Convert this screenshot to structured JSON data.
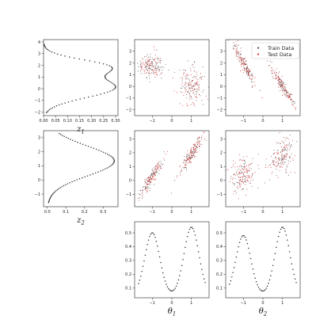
{
  "colors": {
    "train": "#5a4a4a",
    "test": "#d62728",
    "curve": "#333333",
    "frame": "#222222",
    "legend_border": "#cccccc"
  },
  "legend": {
    "placement": "upper-right of top-right panel",
    "train_label": "Train Data",
    "test_label": "Test Data"
  },
  "chart_data": [
    {
      "id": "z1-density",
      "type": "line",
      "xlabel_main": "z",
      "xlabel_sub": "1",
      "xlim": [
        0.0,
        0.31
      ],
      "ylim": [
        -2.3,
        4.2
      ],
      "xticks": [
        0.0,
        0.05,
        0.1,
        0.15,
        0.2,
        0.25,
        0.3
      ],
      "xticklabels": [
        "0.00",
        "0.05",
        "0.10",
        "0.15",
        "0.20",
        "0.25",
        "0.30"
      ],
      "yticks": [
        -2,
        -1,
        0,
        1,
        2,
        3,
        4
      ],
      "yticklabels": [
        "−2",
        "−1",
        "0",
        "1",
        "2",
        "3",
        "4"
      ],
      "curve": {
        "orientation": "horizontal-density",
        "mixture": [
          {
            "w": 0.62,
            "mu": 0.1,
            "sigma": 0.85
          },
          {
            "w": 0.38,
            "mu": 1.9,
            "sigma": 0.62
          }
        ],
        "y_range": [
          -2.05,
          3.8
        ],
        "peak_x": 0.3
      }
    },
    {
      "id": "z2-density",
      "type": "line",
      "xlabel_main": "z",
      "xlabel_sub": "2",
      "xlim": [
        -0.02,
        0.38
      ],
      "ylim": [
        -1.9,
        3.5
      ],
      "xticks": [
        0.0,
        0.1,
        0.2,
        0.3
      ],
      "xticklabels": [
        "0.0",
        "0.1",
        "0.2",
        "0.3"
      ],
      "yticks": [
        -1,
        0,
        1,
        2,
        3
      ],
      "yticklabels": [
        "−1",
        "0",
        "1",
        "2",
        "3"
      ],
      "curve": {
        "orientation": "horizontal-density",
        "mixture": [
          {
            "w": 1.0,
            "mu": 1.35,
            "sigma": 1.05
          }
        ],
        "y_range": [
          -1.6,
          3.3
        ],
        "peak_x": 0.36
      }
    },
    {
      "id": "theta1-vs-z1",
      "type": "scatter",
      "xlim": [
        -1.9,
        1.9
      ],
      "ylim": [
        -2.5,
        4.0
      ],
      "xticks": [
        -1,
        0,
        1
      ],
      "xticklabels": [
        "−1",
        "0",
        "1"
      ],
      "yticks": [
        -2,
        -1,
        0,
        1,
        2,
        3
      ],
      "yticklabels": [
        "−2",
        "−1",
        "0",
        "1",
        "2",
        "3"
      ],
      "clusters": [
        {
          "cx": -1.05,
          "cy": 1.8,
          "sx": 0.32,
          "sy": 0.55,
          "rho": 0.0,
          "n": 170
        },
        {
          "cx": 1.05,
          "cy": 0.1,
          "sx": 0.32,
          "sy": 0.75,
          "rho": 0.0,
          "n": 170
        }
      ]
    },
    {
      "id": "theta2-vs-z1",
      "type": "scatter",
      "xlim": [
        -1.9,
        1.9
      ],
      "ylim": [
        -2.5,
        4.0
      ],
      "xticks": [
        -1,
        0,
        1
      ],
      "xticklabels": [
        "−1",
        "0",
        "1"
      ],
      "yticks": [
        -2,
        -1,
        0,
        1,
        2,
        3
      ],
      "yticklabels": [
        "−2",
        "−1",
        "0",
        "1",
        "2",
        "3"
      ],
      "clusters": [
        {
          "cx": -1.0,
          "cy": 2.0,
          "sx": 0.3,
          "sy": 0.95,
          "rho": -0.95,
          "n": 170
        },
        {
          "cx": 1.0,
          "cy": 0.0,
          "sx": 0.3,
          "sy": 0.85,
          "rho": -0.95,
          "n": 170
        }
      ]
    },
    {
      "id": "theta1-vs-z2",
      "type": "scatter",
      "xlim": [
        -1.9,
        1.9
      ],
      "ylim": [
        -1.9,
        3.6
      ],
      "xticks": [
        -1,
        0,
        1
      ],
      "xticklabels": [
        "−1",
        "0",
        "1"
      ],
      "yticks": [
        -1,
        0,
        1,
        2,
        3
      ],
      "yticklabels": [
        "−1",
        "0",
        "1",
        "2",
        "3"
      ],
      "clusters": [
        {
          "cx": -1.0,
          "cy": 0.3,
          "sx": 0.32,
          "sy": 0.75,
          "rho": 0.93,
          "n": 170
        },
        {
          "cx": 1.0,
          "cy": 1.9,
          "sx": 0.32,
          "sy": 0.75,
          "rho": 0.93,
          "n": 170
        }
      ]
    },
    {
      "id": "theta2-vs-z2",
      "type": "scatter",
      "xlim": [
        -1.9,
        1.9
      ],
      "ylim": [
        -1.9,
        3.6
      ],
      "xticks": [
        -1,
        0,
        1
      ],
      "xticklabels": [
        "−1",
        "0",
        "1"
      ],
      "yticks": [
        -1,
        0,
        1,
        2,
        3
      ],
      "yticklabels": [
        "−1",
        "0",
        "1",
        "2",
        "3"
      ],
      "clusters": [
        {
          "cx": -1.0,
          "cy": 0.4,
          "sx": 0.3,
          "sy": 0.7,
          "rho": 0.3,
          "n": 170
        },
        {
          "cx": 1.0,
          "cy": 1.8,
          "sx": 0.3,
          "sy": 0.75,
          "rho": 0.3,
          "n": 170
        }
      ]
    },
    {
      "id": "theta1-density",
      "type": "line",
      "xlabel_main": "θ",
      "xlabel_sub": "1",
      "xlim": [
        -1.9,
        1.9
      ],
      "ylim": [
        0.03,
        0.58
      ],
      "xticks": [
        -1,
        0,
        1
      ],
      "xticklabels": [
        "−1",
        "0",
        "1"
      ],
      "yticks": [
        0.1,
        0.2,
        0.3,
        0.4,
        0.5
      ],
      "yticklabels": [
        "0.1",
        "0.2",
        "0.3",
        "0.4",
        "0.5"
      ],
      "curve": {
        "orientation": "vertical-density",
        "mixture": [
          {
            "w": 0.5,
            "mu": -1.0,
            "sigma": 0.38
          },
          {
            "w": 0.5,
            "mu": 1.0,
            "sigma": 0.38
          }
        ],
        "x_range": [
          -1.7,
          1.7
        ],
        "peaks": [
          0.5,
          0.54
        ],
        "floor": 0.05
      }
    },
    {
      "id": "theta2-density",
      "type": "line",
      "xlabel_main": "θ",
      "xlabel_sub": "2",
      "xlim": [
        -1.9,
        1.9
      ],
      "ylim": [
        0.03,
        0.58
      ],
      "xticks": [
        -1,
        0,
        1
      ],
      "xticklabels": [
        "−1",
        "0",
        "1"
      ],
      "yticks": [
        0.1,
        0.2,
        0.3,
        0.4,
        0.5
      ],
      "yticklabels": [
        "0.1",
        "0.2",
        "0.3",
        "0.4",
        "0.5"
      ],
      "curve": {
        "orientation": "vertical-density",
        "mixture": [
          {
            "w": 0.5,
            "mu": -1.0,
            "sigma": 0.38
          },
          {
            "w": 0.5,
            "mu": 1.0,
            "sigma": 0.38
          }
        ],
        "x_range": [
          -1.7,
          1.7
        ],
        "peaks": [
          0.48,
          0.54
        ],
        "floor": 0.05
      }
    }
  ]
}
